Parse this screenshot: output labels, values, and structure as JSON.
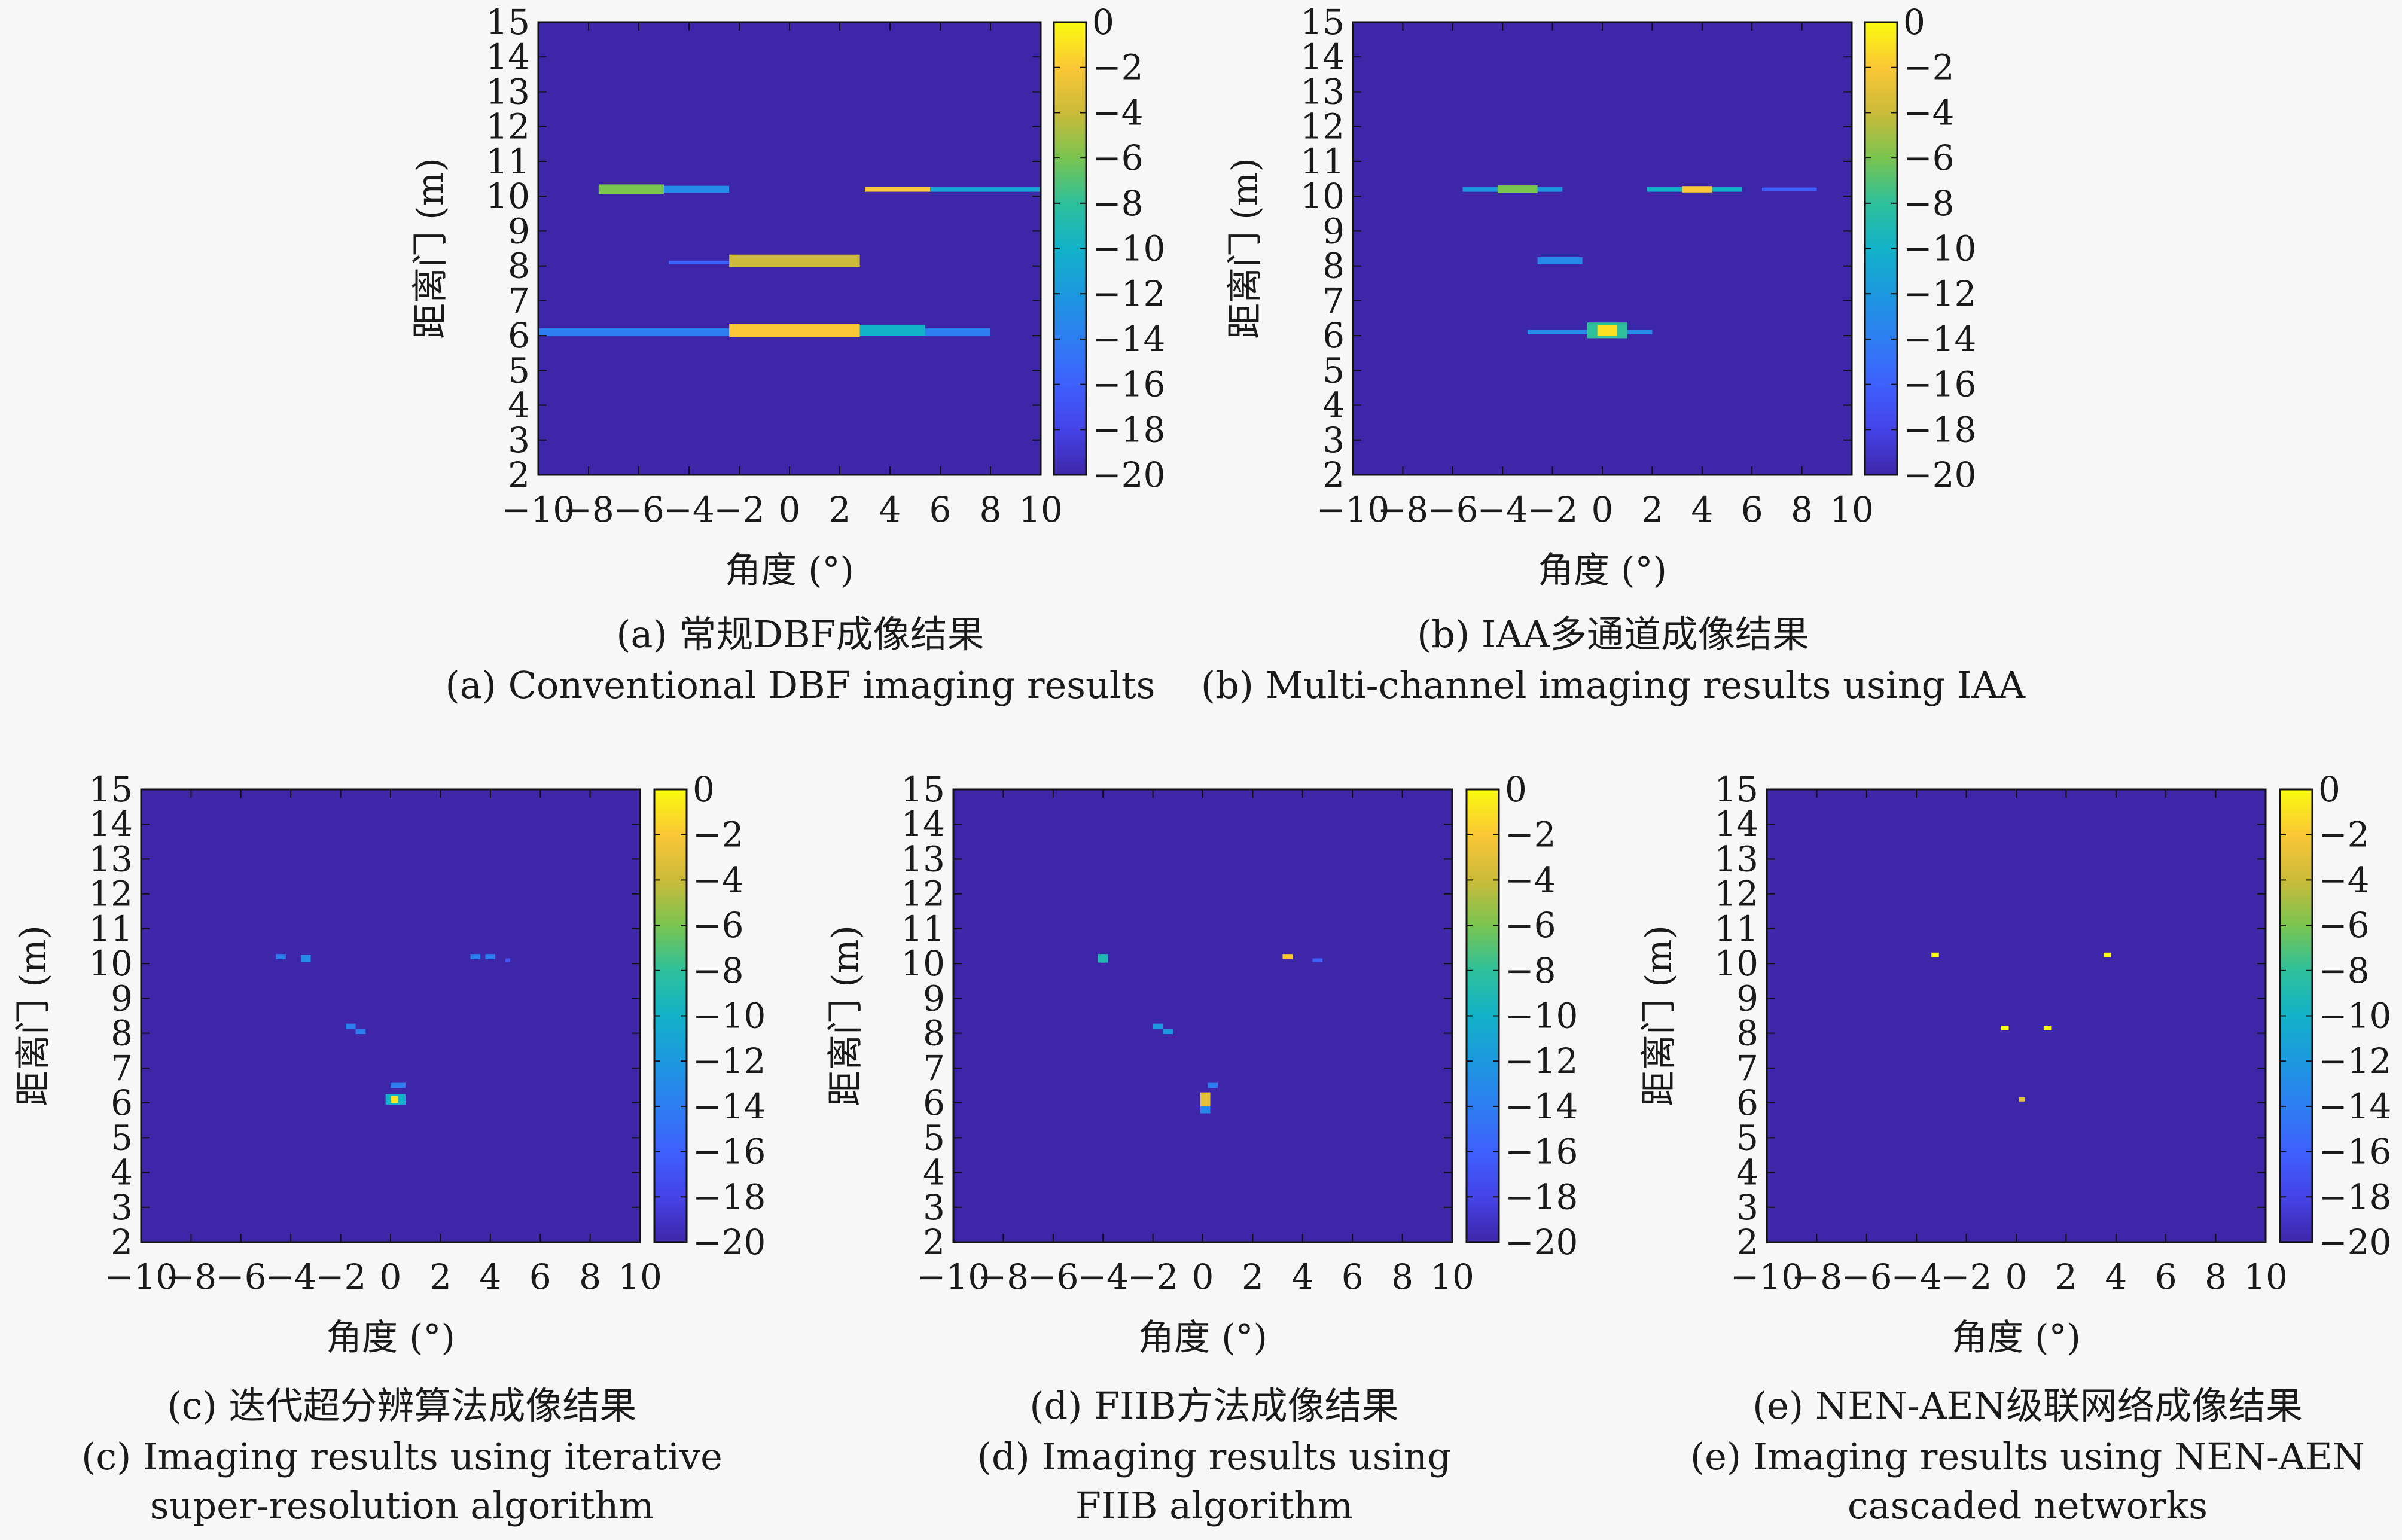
{
  "chart_data": [
    {
      "type": "heatmap",
      "caption_zh": "(a) 常规DBF成像结果",
      "caption_en": [
        "(a) Conventional DBF imaging results"
      ],
      "xlabel": "角度 (°)",
      "ylabel": "距离门 (m)",
      "xlim": [
        -10,
        10
      ],
      "ylim": [
        2,
        15
      ],
      "xticks": [
        "−10",
        "−8",
        "−6",
        "−4",
        "−2",
        "0",
        "2",
        "4",
        "6",
        "8",
        "10"
      ],
      "yticks": [
        "2",
        "3",
        "4",
        "5",
        "6",
        "7",
        "8",
        "9",
        "10",
        "11",
        "12",
        "13",
        "14",
        "15"
      ],
      "colorbar": {
        "range": [
          -20,
          0
        ],
        "ticks": [
          "0",
          "−2",
          "−4",
          "−6",
          "−8",
          "−10",
          "−12",
          "−14",
          "−16",
          "−18",
          "−20"
        ]
      },
      "features": [
        {
          "x0": -10,
          "x1": 8,
          "y": 6.1,
          "h": 0.22,
          "value": -14
        },
        {
          "x0": -2.4,
          "x1": 2.8,
          "y": 6.15,
          "h": 0.38,
          "value": -2
        },
        {
          "x0": 2.8,
          "x1": 5.4,
          "y": 6.15,
          "h": 0.3,
          "value": -10
        },
        {
          "x0": -2.4,
          "x1": 2.8,
          "y": 8.15,
          "h": 0.35,
          "value": -4
        },
        {
          "x0": -4.8,
          "x1": -2.4,
          "y": 8.1,
          "h": 0.1,
          "value": -16
        },
        {
          "x0": -7.6,
          "x1": -5.0,
          "y": 10.2,
          "h": 0.28,
          "value": -6
        },
        {
          "x0": -5.0,
          "x1": -2.4,
          "y": 10.2,
          "h": 0.2,
          "value": -13
        },
        {
          "x0": 3.0,
          "x1": 5.6,
          "y": 10.2,
          "h": 0.14,
          "value": -2
        },
        {
          "x0": 5.6,
          "x1": 10,
          "y": 10.2,
          "h": 0.14,
          "value": -11
        }
      ]
    },
    {
      "type": "heatmap",
      "caption_zh": "(b) IAA多通道成像结果",
      "caption_en": [
        "(b) Multi-channel imaging results using IAA"
      ],
      "xlabel": "角度 (°)",
      "ylabel": "距离门 (m)",
      "xlim": [
        -10,
        10
      ],
      "ylim": [
        2,
        15
      ],
      "xticks": [
        "−10",
        "−8",
        "−6",
        "−4",
        "−2",
        "0",
        "2",
        "4",
        "6",
        "8",
        "10"
      ],
      "yticks": [
        "2",
        "3",
        "4",
        "5",
        "6",
        "7",
        "8",
        "9",
        "10",
        "11",
        "12",
        "13",
        "14",
        "15"
      ],
      "colorbar": {
        "range": [
          -20,
          0
        ],
        "ticks": [
          "0",
          "−2",
          "−4",
          "−6",
          "−8",
          "−10",
          "−12",
          "−14",
          "−16",
          "−18",
          "−20"
        ]
      },
      "features": [
        {
          "x0": -5.6,
          "x1": -1.6,
          "y": 10.2,
          "h": 0.14,
          "value": -12
        },
        {
          "x0": -4.2,
          "x1": -2.6,
          "y": 10.2,
          "h": 0.22,
          "value": -6
        },
        {
          "x0": 1.8,
          "x1": 5.6,
          "y": 10.2,
          "h": 0.14,
          "value": -10
        },
        {
          "x0": 3.2,
          "x1": 4.4,
          "y": 10.2,
          "h": 0.18,
          "value": -2
        },
        {
          "x0": 6.4,
          "x1": 8.6,
          "y": 10.2,
          "h": 0.1,
          "value": -16
        },
        {
          "x0": -2.6,
          "x1": -0.8,
          "y": 8.15,
          "h": 0.2,
          "value": -13
        },
        {
          "x0": -3.0,
          "x1": 2.0,
          "y": 6.1,
          "h": 0.12,
          "value": -13
        },
        {
          "x0": -0.6,
          "x1": 1.0,
          "y": 6.15,
          "h": 0.45,
          "value": -8
        },
        {
          "x0": -0.2,
          "x1": 0.6,
          "y": 6.15,
          "h": 0.3,
          "value": -1
        }
      ]
    },
    {
      "type": "heatmap",
      "caption_zh": "(c) 迭代超分辨算法成像结果",
      "caption_en": [
        "(c) Imaging results using iterative",
        "super-resolution algorithm"
      ],
      "xlabel": "角度 (°)",
      "ylabel": "距离门 (m)",
      "xlim": [
        -10,
        10
      ],
      "ylim": [
        2,
        15
      ],
      "xticks": [
        "−10",
        "−8",
        "−6",
        "−4",
        "−2",
        "0",
        "2",
        "4",
        "6",
        "8",
        "10"
      ],
      "yticks": [
        "2",
        "3",
        "4",
        "5",
        "6",
        "7",
        "8",
        "9",
        "10",
        "11",
        "12",
        "13",
        "14",
        "15"
      ],
      "colorbar": {
        "range": [
          -20,
          0
        ],
        "ticks": [
          "0",
          "−2",
          "−4",
          "−6",
          "−8",
          "−10",
          "−12",
          "−14",
          "−16",
          "−18",
          "−20"
        ]
      },
      "features": [
        {
          "x0": -4.6,
          "x1": -4.2,
          "y": 10.2,
          "h": 0.15,
          "value": -14
        },
        {
          "x0": -3.6,
          "x1": -3.2,
          "y": 10.15,
          "h": 0.2,
          "value": -13
        },
        {
          "x0": 3.2,
          "x1": 3.6,
          "y": 10.2,
          "h": 0.15,
          "value": -14
        },
        {
          "x0": 3.8,
          "x1": 4.2,
          "y": 10.2,
          "h": 0.15,
          "value": -14
        },
        {
          "x0": 4.6,
          "x1": 4.8,
          "y": 10.1,
          "h": 0.1,
          "value": -17
        },
        {
          "x0": -1.8,
          "x1": -1.4,
          "y": 8.2,
          "h": 0.15,
          "value": -14
        },
        {
          "x0": -1.4,
          "x1": -1.0,
          "y": 8.05,
          "h": 0.15,
          "value": -14
        },
        {
          "x0": 0.0,
          "x1": 0.6,
          "y": 6.5,
          "h": 0.15,
          "value": -14
        },
        {
          "x0": -0.2,
          "x1": 0.6,
          "y": 6.1,
          "h": 0.3,
          "value": -10
        },
        {
          "x0": 0.0,
          "x1": 0.3,
          "y": 6.1,
          "h": 0.2,
          "value": -1
        }
      ]
    },
    {
      "type": "heatmap",
      "caption_zh": "(d) FIIB方法成像结果",
      "caption_en": [
        "(d) Imaging results using",
        "FIIB algorithm"
      ],
      "xlabel": "角度 (°)",
      "ylabel": "距离门 (m)",
      "xlim": [
        -10,
        10
      ],
      "ylim": [
        2,
        15
      ],
      "xticks": [
        "−10",
        "−8",
        "−6",
        "−4",
        "−2",
        "0",
        "2",
        "4",
        "6",
        "8",
        "10"
      ],
      "yticks": [
        "2",
        "3",
        "4",
        "5",
        "6",
        "7",
        "8",
        "9",
        "10",
        "11",
        "12",
        "13",
        "14",
        "15"
      ],
      "colorbar": {
        "range": [
          -20,
          0
        ],
        "ticks": [
          "0",
          "−2",
          "−4",
          "−6",
          "−8",
          "−10",
          "−12",
          "−14",
          "−16",
          "−18",
          "−20"
        ]
      },
      "features": [
        {
          "x0": -4.2,
          "x1": -3.8,
          "y": 10.15,
          "h": 0.25,
          "value": -9
        },
        {
          "x0": 3.2,
          "x1": 3.6,
          "y": 10.2,
          "h": 0.15,
          "value": -2
        },
        {
          "x0": 4.4,
          "x1": 4.8,
          "y": 10.1,
          "h": 0.1,
          "value": -16
        },
        {
          "x0": -2.0,
          "x1": -1.6,
          "y": 8.2,
          "h": 0.15,
          "value": -12
        },
        {
          "x0": -1.6,
          "x1": -1.2,
          "y": 8.05,
          "h": 0.15,
          "value": -12
        },
        {
          "x0": 0.2,
          "x1": 0.6,
          "y": 6.5,
          "h": 0.15,
          "value": -14
        },
        {
          "x0": -0.1,
          "x1": 0.3,
          "y": 6.1,
          "h": 0.4,
          "value": -3
        },
        {
          "x0": -0.1,
          "x1": 0.3,
          "y": 5.8,
          "h": 0.2,
          "value": -13
        }
      ]
    },
    {
      "type": "heatmap",
      "caption_zh": "(e) NEN-AEN级联网络成像结果",
      "caption_en": [
        "(e) Imaging results using NEN-AEN",
        "cascaded networks"
      ],
      "xlabel": "角度 (°)",
      "ylabel": "距离门 (m)",
      "xlim": [
        -10,
        10
      ],
      "ylim": [
        2,
        15
      ],
      "xticks": [
        "−10",
        "−8",
        "−6",
        "−4",
        "−2",
        "0",
        "2",
        "4",
        "6",
        "8",
        "10"
      ],
      "yticks": [
        "2",
        "3",
        "4",
        "5",
        "6",
        "7",
        "8",
        "9",
        "10",
        "11",
        "12",
        "13",
        "14",
        "15"
      ],
      "colorbar": {
        "range": [
          -20,
          0
        ],
        "ticks": [
          "0",
          "−2",
          "−4",
          "−6",
          "−8",
          "−10",
          "−12",
          "−14",
          "−16",
          "−18",
          "−20"
        ]
      },
      "features": [
        {
          "x0": -3.4,
          "x1": -3.1,
          "y": 10.25,
          "h": 0.13,
          "value": 0
        },
        {
          "x0": 3.5,
          "x1": 3.8,
          "y": 10.25,
          "h": 0.13,
          "value": 0
        },
        {
          "x0": -0.6,
          "x1": -0.3,
          "y": 8.15,
          "h": 0.13,
          "value": 0
        },
        {
          "x0": 1.1,
          "x1": 1.4,
          "y": 8.15,
          "h": 0.13,
          "value": 0
        },
        {
          "x0": 0.1,
          "x1": 0.35,
          "y": 6.1,
          "h": 0.12,
          "value": -3
        }
      ]
    }
  ]
}
